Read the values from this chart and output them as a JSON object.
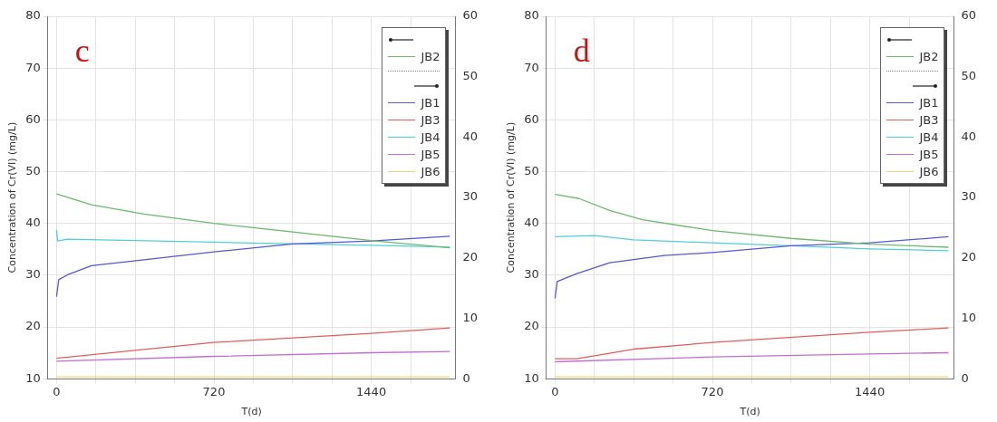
{
  "chart_data": [
    {
      "type": "line",
      "title": "c",
      "xlabel": "T(d)",
      "ylabel": "Concentration of Cr(VI) (mg/L)",
      "legend": "top right",
      "grid": true,
      "marker": "none",
      "line_style": "solid",
      "xlim": [
        -40,
        1825
      ],
      "xticks": [
        0,
        {
          "value": 180,
          "label": null
        },
        {
          "value": 360,
          "label": null
        },
        {
          "value": 540,
          "label": null
        },
        720,
        {
          "value": 900,
          "label": null
        },
        {
          "value": 1080,
          "label": null
        },
        {
          "value": 1260,
          "label": null
        },
        1440,
        {
          "value": 1620,
          "label": null
        }
      ],
      "ylim": [
        10,
        80
      ],
      "yticks": [
        10,
        20,
        30,
        40,
        50,
        60,
        70,
        80
      ],
      "y2lim": [
        0,
        60
      ],
      "y2ticks": [
        0,
        10,
        20,
        30,
        40,
        50,
        60
      ],
      "series": [
        {
          "name": "JB2",
          "axis": "y",
          "color": "#6fb86f",
          "x": [
            0,
            160,
            400,
            720,
            1440,
            1800
          ],
          "values": [
            45.7,
            43.6,
            41.8,
            40.0,
            36.7,
            35.3
          ]
        },
        {
          "name": "JB1",
          "axis": "y2",
          "color": "#5858d0",
          "x": [
            0,
            10,
            50,
            160,
            400,
            720,
            1080,
            1440,
            1800
          ],
          "values": [
            13.6,
            16.4,
            17.2,
            18.7,
            19.7,
            21.0,
            22.3,
            22.8,
            23.6
          ]
        },
        {
          "name": "JB3",
          "axis": "y2",
          "color": "#e06060",
          "x": [
            0,
            360,
            720,
            1440,
            1800
          ],
          "values": [
            3.4,
            4.7,
            6.0,
            7.5,
            8.4
          ]
        },
        {
          "name": "JB4",
          "axis": "y2",
          "color": "#50d0d8",
          "x": [
            0,
            5,
            50,
            720,
            1440,
            1800
          ],
          "values": [
            24.6,
            22.8,
            23.1,
            22.6,
            22.1,
            21.8
          ]
        },
        {
          "name": "JB5",
          "axis": "y2",
          "color": "#c070d0",
          "x": [
            0,
            720,
            1440,
            1800
          ],
          "values": [
            2.9,
            3.7,
            4.3,
            4.5
          ]
        },
        {
          "name": "JB6",
          "axis": "y2",
          "color": "#ecd878",
          "x": [
            0,
            1800
          ],
          "values": [
            0.3,
            0.3
          ]
        }
      ]
    },
    {
      "type": "line",
      "title": "d",
      "xlabel": "T(d)",
      "ylabel": "Concentration of Cr(VI) (mg/L)",
      "legend": "top right",
      "grid": true,
      "marker": "none",
      "line_style": "solid",
      "xlim": [
        -40,
        1825
      ],
      "xticks": [
        0,
        {
          "value": 180,
          "label": null
        },
        {
          "value": 360,
          "label": null
        },
        {
          "value": 540,
          "label": null
        },
        720,
        {
          "value": 900,
          "label": null
        },
        {
          "value": 1080,
          "label": null
        },
        {
          "value": 1260,
          "label": null
        },
        1440,
        {
          "value": 1620,
          "label": null
        }
      ],
      "ylim": [
        10,
        80
      ],
      "yticks": [
        10,
        20,
        30,
        40,
        50,
        60,
        70,
        80
      ],
      "y2lim": [
        0,
        60
      ],
      "y2ticks": [
        0,
        10,
        20,
        30,
        40,
        50,
        60
      ],
      "series": [
        {
          "name": "JB2",
          "axis": "y",
          "color": "#6fb86f",
          "x": [
            0,
            110,
            250,
            400,
            720,
            1080,
            1440,
            1800
          ],
          "values": [
            45.6,
            44.8,
            42.5,
            40.7,
            38.6,
            37.1,
            36.0,
            35.4
          ]
        },
        {
          "name": "JB1",
          "axis": "y2",
          "color": "#5858d0",
          "x": [
            0,
            10,
            100,
            250,
            500,
            720,
            1080,
            1440,
            1800
          ],
          "values": [
            13.3,
            16.1,
            17.4,
            19.2,
            20.4,
            20.9,
            22.0,
            22.5,
            23.5
          ]
        },
        {
          "name": "JB3",
          "axis": "y2",
          "color": "#e06060",
          "x": [
            0,
            100,
            360,
            720,
            1440,
            1800
          ],
          "values": [
            3.3,
            3.3,
            4.9,
            6.0,
            7.7,
            8.4
          ]
        },
        {
          "name": "JB4",
          "axis": "y2",
          "color": "#50d0d8",
          "x": [
            0,
            180,
            360,
            720,
            1080,
            1440,
            1800
          ],
          "values": [
            23.5,
            23.7,
            23.0,
            22.5,
            22.0,
            21.5,
            21.2
          ]
        },
        {
          "name": "JB5",
          "axis": "y2",
          "color": "#c070d0",
          "x": [
            0,
            720,
            1440,
            1800
          ],
          "values": [
            2.8,
            3.6,
            4.1,
            4.3
          ]
        },
        {
          "name": "JB6",
          "axis": "y2",
          "color": "#ecd878",
          "x": [
            0,
            1800
          ],
          "values": [
            0.3,
            0.3
          ]
        }
      ]
    }
  ]
}
